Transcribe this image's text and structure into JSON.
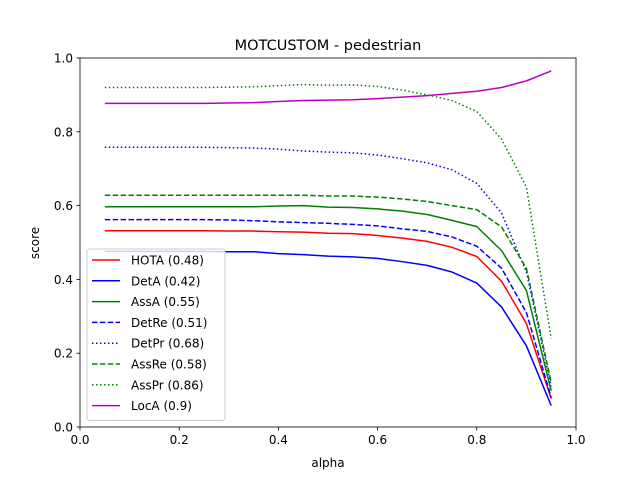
{
  "chart_data": {
    "type": "line",
    "title": "MOTCUSTOM - pedestrian",
    "xlabel": "alpha",
    "ylabel": "score",
    "xlim": [
      0.0,
      1.0
    ],
    "ylim": [
      0.0,
      1.0
    ],
    "xticks": [
      "0.0",
      "0.2",
      "0.4",
      "0.6",
      "0.8",
      "1.0"
    ],
    "yticks": [
      "0.0",
      "0.2",
      "0.4",
      "0.6",
      "0.8",
      "1.0"
    ],
    "grid": false,
    "legend_position": "lower-left",
    "x": [
      0.05,
      0.1,
      0.15,
      0.2,
      0.25,
      0.3,
      0.35,
      0.4,
      0.45,
      0.5,
      0.55,
      0.6,
      0.65,
      0.7,
      0.75,
      0.8,
      0.85,
      0.9,
      0.95
    ],
    "series": [
      {
        "name": "HOTA (0.48)",
        "color": "#ff0000",
        "dash": "solid",
        "values": [
          0.532,
          0.532,
          0.532,
          0.532,
          0.532,
          0.531,
          0.531,
          0.529,
          0.528,
          0.525,
          0.524,
          0.519,
          0.512,
          0.503,
          0.487,
          0.462,
          0.395,
          0.28,
          0.077
        ]
      },
      {
        "name": "DetA (0.42)",
        "color": "#0000ff",
        "dash": "solid",
        "values": [
          0.476,
          0.476,
          0.476,
          0.476,
          0.476,
          0.475,
          0.475,
          0.47,
          0.467,
          0.463,
          0.461,
          0.457,
          0.448,
          0.438,
          0.42,
          0.39,
          0.325,
          0.22,
          0.058
        ]
      },
      {
        "name": "AssA (0.55)",
        "color": "#008000",
        "dash": "solid",
        "values": [
          0.597,
          0.597,
          0.597,
          0.597,
          0.597,
          0.597,
          0.597,
          0.599,
          0.6,
          0.596,
          0.595,
          0.591,
          0.585,
          0.576,
          0.56,
          0.543,
          0.478,
          0.37,
          0.098
        ]
      },
      {
        "name": "DetRe (0.51)",
        "color": "#0000ff",
        "dash": "dashed",
        "values": [
          0.562,
          0.562,
          0.562,
          0.562,
          0.562,
          0.561,
          0.559,
          0.556,
          0.554,
          0.552,
          0.549,
          0.545,
          0.537,
          0.53,
          0.515,
          0.49,
          0.43,
          0.31,
          0.08
        ]
      },
      {
        "name": "DetPr (0.68)",
        "color": "#0000ff",
        "dash": "dotted",
        "values": [
          0.758,
          0.758,
          0.758,
          0.758,
          0.758,
          0.757,
          0.756,
          0.753,
          0.748,
          0.745,
          0.743,
          0.737,
          0.727,
          0.716,
          0.697,
          0.66,
          0.58,
          0.42,
          0.11
        ]
      },
      {
        "name": "AssRe (0.58)",
        "color": "#008000",
        "dash": "dashed",
        "values": [
          0.628,
          0.628,
          0.628,
          0.628,
          0.628,
          0.628,
          0.628,
          0.628,
          0.628,
          0.626,
          0.626,
          0.623,
          0.618,
          0.611,
          0.6,
          0.589,
          0.542,
          0.43,
          0.12
        ]
      },
      {
        "name": "AssPr (0.86)",
        "color": "#008000",
        "dash": "dotted",
        "values": [
          0.92,
          0.92,
          0.92,
          0.92,
          0.92,
          0.921,
          0.922,
          0.925,
          0.928,
          0.926,
          0.927,
          0.923,
          0.913,
          0.9,
          0.885,
          0.855,
          0.78,
          0.65,
          0.24
        ]
      },
      {
        "name": "LocA (0.9)",
        "color": "#bf00bf",
        "dash": "solid",
        "values": [
          0.877,
          0.877,
          0.877,
          0.877,
          0.877,
          0.878,
          0.879,
          0.882,
          0.885,
          0.886,
          0.887,
          0.89,
          0.894,
          0.898,
          0.904,
          0.91,
          0.92,
          0.938,
          0.965
        ]
      }
    ]
  }
}
